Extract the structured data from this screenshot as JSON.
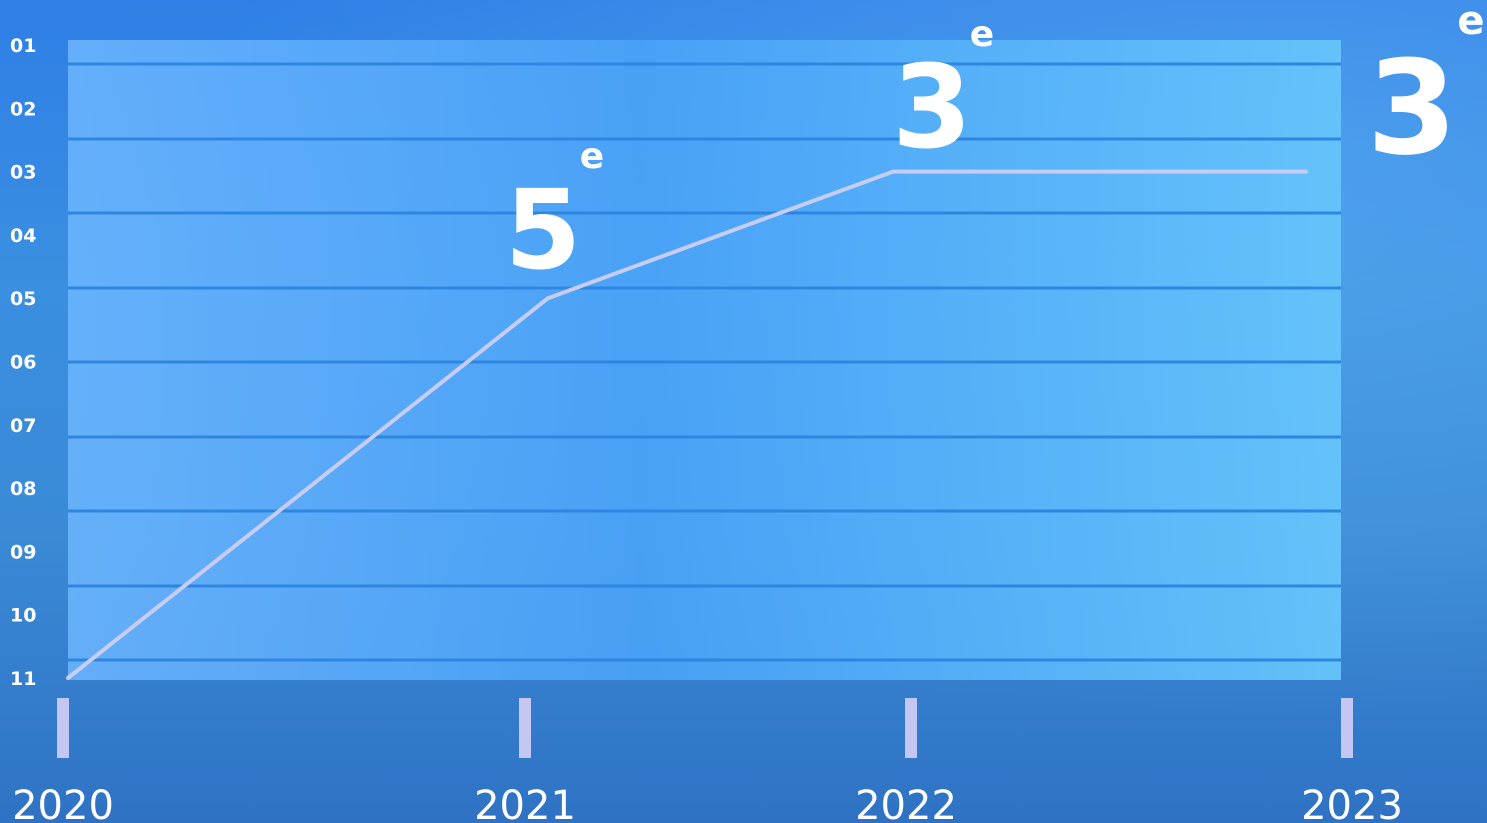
{
  "colors": {
    "background": "#3a8ad6",
    "plot_area": "#4fa8f5",
    "gridline": "#2e86e0",
    "line": "#c6ccf2",
    "tick_marker": "#c4c6f4",
    "text": "#ffffff"
  },
  "chart_data": {
    "type": "line",
    "title": "",
    "xlabel": "",
    "ylabel": "",
    "x": [
      "2020",
      "2021",
      "2022",
      "2023"
    ],
    "y_tick_labels": [
      "01",
      "02",
      "03",
      "04",
      "05",
      "06",
      "07",
      "08",
      "09",
      "10",
      "11"
    ],
    "ylim": [
      1,
      11
    ],
    "y_inverted": true,
    "grid": true,
    "series": [
      {
        "values": [
          11,
          5,
          3,
          3
        ]
      }
    ],
    "annotations": [
      {
        "x": "2021",
        "value": "5",
        "suffix": "e"
      },
      {
        "x": "2022",
        "value": "3",
        "suffix": "e"
      },
      {
        "x": "2023",
        "value": "3",
        "suffix": "e"
      }
    ]
  }
}
